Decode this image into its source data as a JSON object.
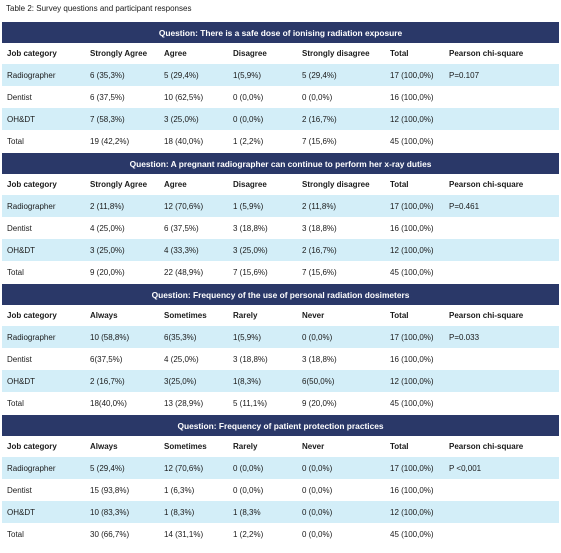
{
  "caption": "Table 2: Survey questions and participant responses",
  "sections": [
    {
      "question": "Question: There is a safe dose of ionising radiation exposure",
      "headers": [
        "Job category",
        "Strongly Agree",
        "Agree",
        "Disagree",
        "Strongly disagree",
        "Total",
        "Pearson chi-square"
      ],
      "rows": [
        [
          "Radiographer",
          "6 (35,3%)",
          "5 (29,4%)",
          "1(5,9%)",
          "5 (29,4%)",
          "17 (100,0%)",
          "P=0.107"
        ],
        [
          "Dentist",
          "6 (37,5%)",
          "10 (62,5%)",
          "0 (0,0%)",
          "0 (0,0%)",
          "16 (100,0%)",
          ""
        ],
        [
          "OH&DT",
          "7 (58,3%)",
          "3 (25,0%)",
          "0 (0,0%)",
          "2 (16,7%)",
          "12 (100,0%)",
          ""
        ],
        [
          "Total",
          "19 (42,2%)",
          "18 (40,0%)",
          "1 (2,2%)",
          "7 (15,6%)",
          "45 (100,0%)",
          ""
        ]
      ]
    },
    {
      "question": "Question: A pregnant radiographer can continue to perform her x-ray duties",
      "headers": [
        "Job category",
        "Strongly Agree",
        "Agree",
        "Disagree",
        "Strongly disagree",
        "Total",
        "Pearson chi-square"
      ],
      "rows": [
        [
          "Radiographer",
          "2 (11,8%)",
          "12 (70,6%)",
          "1 (5,9%)",
          "2 (11,8%)",
          "17 (100,0%)",
          "P=0.461"
        ],
        [
          "Dentist",
          "4 (25,0%)",
          "6 (37,5%)",
          "3 (18,8%)",
          "3 (18,8%)",
          "16 (100,0%)",
          ""
        ],
        [
          "OH&DT",
          "3 (25,0%)",
          "4 (33,3%)",
          "3 (25,0%)",
          "2 (16,7%)",
          "12 (100,0%)",
          ""
        ],
        [
          "Total",
          "9 (20,0%)",
          "22 (48,9%)",
          "7 (15,6%)",
          "7 (15,6%)",
          "45 (100,0%)",
          ""
        ]
      ]
    },
    {
      "question": "Question: Frequency of the use of personal radiation dosimeters",
      "headers": [
        "Job category",
        "Always",
        "Sometimes",
        "Rarely",
        "Never",
        "Total",
        "Pearson chi-square"
      ],
      "rows": [
        [
          "Radiographer",
          "10 (58,8%)",
          "6(35,3%)",
          "1(5,9%)",
          "0 (0,0%)",
          "17 (100,0%)",
          "P=0.033"
        ],
        [
          "Dentist",
          "6(37,5%)",
          "4 (25,0%)",
          "3 (18,8%)",
          "3 (18,8%)",
          "16 (100,0%)",
          ""
        ],
        [
          "OH&DT",
          "2 (16,7%)",
          "3(25,0%)",
          "1(8,3%)",
          "6(50,0%)",
          "12 (100,0%)",
          ""
        ],
        [
          "Total",
          "18(40,0%)",
          "13 (28,9%)",
          "5 (11,1%)",
          "9 (20,0%)",
          "45 (100,0%)",
          ""
        ]
      ]
    },
    {
      "question": "Question: Frequency of patient protection practices",
      "headers": [
        "Job category",
        "Always",
        "Sometimes",
        "Rarely",
        "Never",
        "Total",
        "Pearson  chi-square"
      ],
      "rows": [
        [
          "Radiographer",
          "5 (29,4%)",
          "12 (70,6%)",
          "0 (0,0%)",
          "0 (0,0%)",
          "17 (100,0%)",
          "P <0,001"
        ],
        [
          "Dentist",
          "15 (93,8%)",
          "1 (6,3%)",
          "0 (0,0%)",
          "0 (0,0%)",
          "16 (100,0%)",
          ""
        ],
        [
          "OH&DT",
          "10 (83,3%)",
          "1 (8,3%)",
          "1 (8,3%",
          "0 (0,0%)",
          "12 (100,0%)",
          ""
        ],
        [
          "Total",
          "30 (66,7%)",
          "14 (31,1%)",
          "1 (2,2%)",
          "0 (0,0%)",
          "45 (100,0%)",
          ""
        ]
      ]
    }
  ]
}
